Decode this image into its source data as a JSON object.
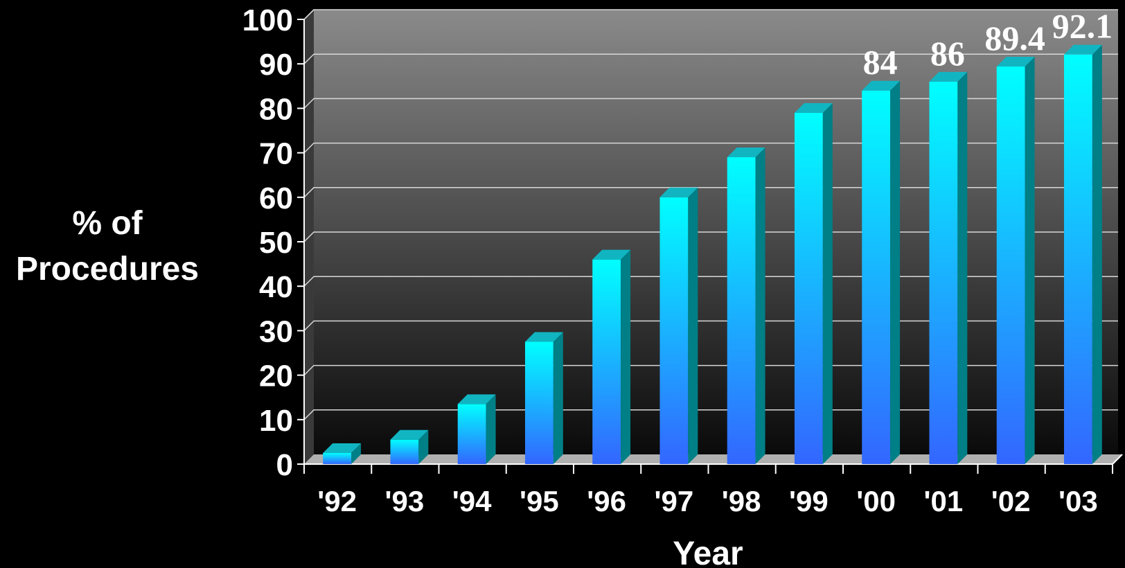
{
  "chart_data": {
    "type": "bar",
    "title": "",
    "xlabel": "Year",
    "ylabel_lines": [
      "% of",
      "Procedures"
    ],
    "categories": [
      "'92",
      "'93",
      "'94",
      "'95",
      "'96",
      "'97",
      "'98",
      "'99",
      "'00",
      "'01",
      "'02",
      "'03"
    ],
    "values": [
      2.5,
      5.5,
      13.5,
      27.5,
      46,
      60,
      69,
      79,
      84,
      86,
      89.4,
      92.1
    ],
    "data_labels": [
      "",
      "",
      "",
      "",
      "",
      "",
      "",
      "",
      "84",
      "86",
      "89.4",
      "92.1"
    ],
    "yticks": [
      0,
      10,
      20,
      30,
      40,
      50,
      60,
      70,
      80,
      90,
      100
    ],
    "ylim": [
      0,
      100
    ],
    "grid": true,
    "colors": {
      "background": "#000000",
      "plot_top": "#8a8a8a",
      "plot_bottom": "#0a0a0a",
      "bar_top": "#00ffff",
      "bar_bottom": "#3366ff",
      "bar_side": "#007f86",
      "grid": "#d8d8d8"
    }
  }
}
